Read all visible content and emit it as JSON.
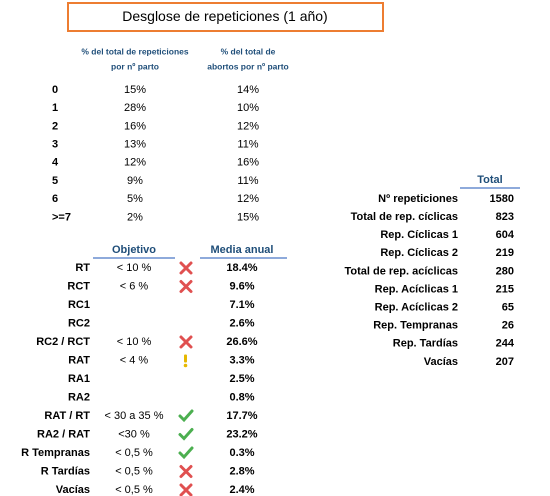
{
  "title": "Desglose de repeticiones (1 año)",
  "parto_table": {
    "headers": [
      [
        "% del total de repeticiones",
        "por nº parto"
      ],
      [
        "% del total de",
        "abortos por nº parto"
      ]
    ],
    "rows": [
      [
        "0",
        "15%",
        "14%"
      ],
      [
        "1",
        "28%",
        "10%"
      ],
      [
        "2",
        "16%",
        "12%"
      ],
      [
        "3",
        "13%",
        "11%"
      ],
      [
        "4",
        "12%",
        "16%"
      ],
      [
        "5",
        "9%",
        "11%"
      ],
      [
        "6",
        "5%",
        "12%"
      ],
      [
        ">=7",
        "2%",
        "15%"
      ]
    ]
  },
  "indicator_table": {
    "headers": [
      "Objetivo",
      "Media anual"
    ],
    "rows": [
      [
        "RT",
        "< 10 %",
        "18.4%"
      ],
      [
        "RCT",
        "< 6 %",
        "9.6%"
      ],
      [
        "RC1",
        "",
        "7.1%"
      ],
      [
        "RC2",
        "",
        "2.6%"
      ],
      [
        "RC2 / RCT",
        "< 10 %",
        "26.6%"
      ],
      [
        "RAT",
        "< 4 %",
        "3.3%"
      ],
      [
        "RA1",
        "",
        "2.5%"
      ],
      [
        "RA2",
        "",
        "0.8%"
      ],
      [
        "RAT / RT",
        "< 30 a 35 %",
        "17.7%"
      ],
      [
        "RA2 / RAT",
        "<30 %",
        "23.2%"
      ],
      [
        "R Tempranas",
        "< 0,5 %",
        "0.3%"
      ],
      [
        "R Tardías",
        "< 0,5 %",
        "2.8%"
      ],
      [
        "Vacías",
        "< 0,5 %",
        "2.4%"
      ]
    ]
  },
  "total_table": {
    "header": "Total",
    "rows": [
      [
        "Nº repeticiones",
        1580
      ],
      [
        "Total de rep. cíclicas",
        823
      ],
      [
        "Rep. Cíclicas 1",
        604
      ],
      [
        "Rep. Cíclicas 2",
        219
      ],
      [
        "Total de rep. acíclicas",
        280
      ],
      [
        "Rep. Acíclicas 1",
        215
      ],
      [
        "Rep. Acíclicas 2",
        65
      ],
      [
        "Rep. Tempranas",
        26
      ],
      [
        "Rep. Tardías",
        244
      ],
      [
        "Vacías",
        207
      ]
    ]
  }
}
